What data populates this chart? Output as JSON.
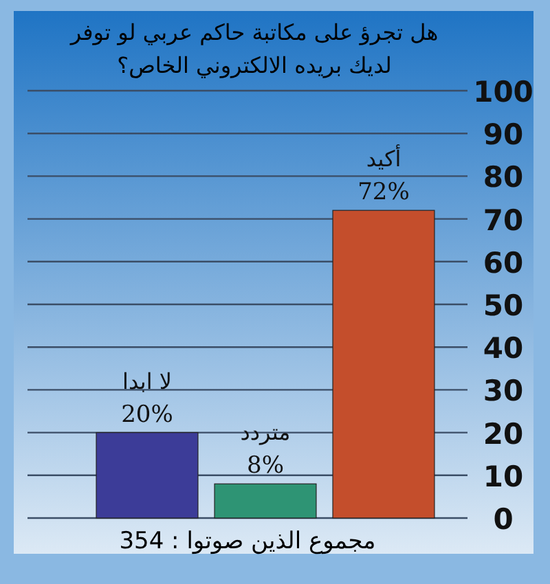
{
  "chart_data": {
    "type": "bar",
    "title": "هل تجرؤ على مكاتبة حاكم عربي لو توفر لديك بريده الالكتروني الخاص؟",
    "categories": [
      "لا ابدا",
      "متردد",
      "أكيد"
    ],
    "values": [
      20,
      8,
      72
    ],
    "value_labels": [
      "20%",
      "8%",
      "72%"
    ],
    "colors": [
      "#3c3c98",
      "#2e9474",
      "#c44e2c"
    ],
    "ylim": [
      0,
      100
    ],
    "yticks": [
      0,
      10,
      20,
      30,
      40,
      50,
      60,
      70,
      80,
      90,
      100
    ],
    "grid": "y",
    "annotations": [
      "مجموع الذين صوتوا : 354"
    ]
  }
}
